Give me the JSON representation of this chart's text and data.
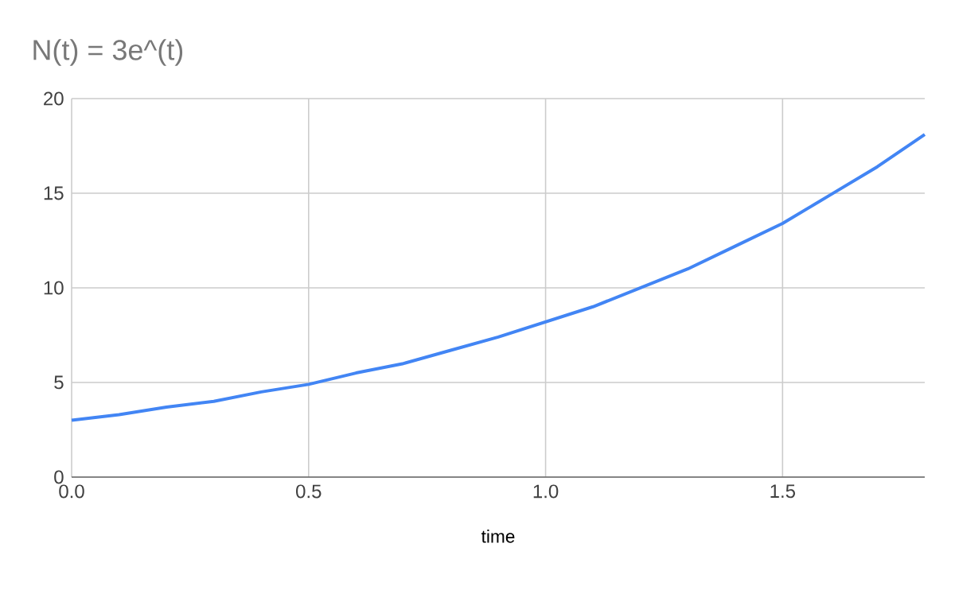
{
  "chart_data": {
    "type": "line",
    "title": "N(t) = 3e^(t)",
    "xlabel": "time",
    "x": [
      0,
      0.1,
      0.2,
      0.3,
      0.4,
      0.5,
      0.6,
      0.7,
      0.8,
      0.9,
      1.0,
      1.1,
      1.2,
      1.3,
      1.4,
      1.5,
      1.6,
      1.7,
      1.8
    ],
    "values": [
      3.0,
      3.3,
      3.7,
      4.0,
      4.5,
      4.9,
      5.5,
      6.0,
      6.7,
      7.4,
      8.2,
      9.0,
      10.0,
      11.0,
      12.2,
      13.4,
      14.9,
      16.4,
      18.1
    ],
    "color": "#4285f4",
    "xlim": [
      0,
      1.8
    ],
    "ylim": [
      0,
      20
    ],
    "xticks": [
      {
        "value": 0,
        "label": "0.0"
      },
      {
        "value": 0.5,
        "label": "0.5"
      },
      {
        "value": 1,
        "label": "1.0"
      },
      {
        "value": 1.5,
        "label": "1.5"
      }
    ],
    "yticks": [
      0,
      5,
      10,
      15,
      20
    ],
    "grid": true
  }
}
